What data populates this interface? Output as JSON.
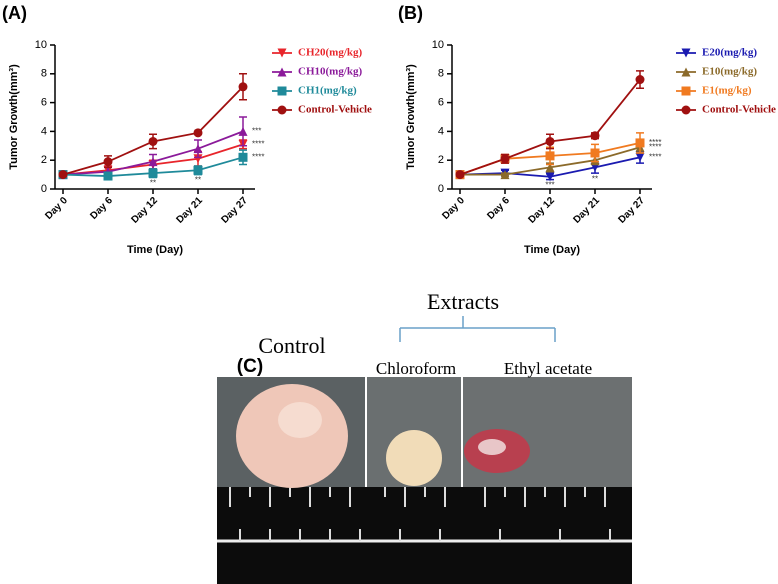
{
  "chart_data": [
    {
      "type": "line",
      "panel": "(A)",
      "y_label": "Tumor Growth(mm³)",
      "x_label": "Time (Day)",
      "categories": [
        "Day 0",
        "Day 6",
        "Day 12",
        "Day 21",
        "Day 27"
      ],
      "ylim": [
        0,
        10
      ],
      "yticks": [
        0,
        2,
        4,
        6,
        8,
        10
      ],
      "series": [
        {
          "name": "CH20(mg/kg)",
          "color": "#e8252b",
          "marker": "triangle-down",
          "values": [
            1.0,
            1.3,
            1.7,
            2.1,
            3.1
          ],
          "errors": [
            0.1,
            0.3,
            0.3,
            0.5,
            0.3
          ],
          "annotations": [
            null,
            null,
            null,
            null,
            "****"
          ]
        },
        {
          "name": "CH10(mg/kg)",
          "color": "#8b1a9a",
          "marker": "triangle-up",
          "values": [
            1.0,
            1.2,
            1.9,
            2.8,
            4.0
          ],
          "errors": [
            0.1,
            0.3,
            0.5,
            0.6,
            1.0
          ],
          "annotations": [
            null,
            null,
            null,
            null,
            "***"
          ]
        },
        {
          "name": "CH1(mg/kg)",
          "color": "#1f8a9a",
          "marker": "square",
          "values": [
            1.0,
            0.9,
            1.1,
            1.3,
            2.2
          ],
          "errors": [
            0.1,
            0.2,
            0.3,
            0.3,
            0.5
          ],
          "annotations": [
            null,
            null,
            "**",
            "**",
            "****"
          ]
        },
        {
          "name": "Control-Vehicle",
          "color": "#a01010",
          "marker": "circle",
          "values": [
            1.0,
            1.9,
            3.3,
            3.9,
            7.1
          ],
          "errors": [
            0.1,
            0.4,
            0.5,
            0.1,
            0.9
          ],
          "annotations": [
            null,
            null,
            null,
            null,
            null
          ]
        }
      ]
    },
    {
      "type": "line",
      "panel": "(B)",
      "y_label": "Tumor Growth(mm³)",
      "x_label": "Time (Day)",
      "categories": [
        "Day 0",
        "Day 6",
        "Day 12",
        "Day 21",
        "Day 27"
      ],
      "ylim": [
        0,
        10
      ],
      "yticks": [
        0,
        2,
        4,
        6,
        8,
        10
      ],
      "series": [
        {
          "name": "E20(mg/kg)",
          "color": "#1a1ab0",
          "marker": "triangle-down",
          "values": [
            1.0,
            1.1,
            0.85,
            1.5,
            2.2
          ],
          "errors": [
            0.1,
            0.2,
            0.2,
            0.4,
            0.4
          ],
          "annotations": [
            null,
            null,
            "***",
            "**",
            "****"
          ]
        },
        {
          "name": "E10(mg/kg)",
          "color": "#8b6a2a",
          "marker": "triangle-up",
          "values": [
            1.0,
            1.0,
            1.5,
            2.0,
            2.9
          ],
          "errors": [
            0.1,
            0.1,
            0.3,
            0.3,
            0.4
          ],
          "annotations": [
            null,
            null,
            null,
            null,
            "****"
          ]
        },
        {
          "name": "E1(mg/kg)",
          "color": "#f07a20",
          "marker": "square",
          "values": [
            1.0,
            2.1,
            2.3,
            2.5,
            3.2
          ],
          "errors": [
            0.1,
            0.3,
            0.6,
            0.6,
            0.7
          ],
          "annotations": [
            null,
            null,
            null,
            null,
            "****"
          ]
        },
        {
          "name": "Control-Vehicle",
          "color": "#a01010",
          "marker": "circle",
          "values": [
            1.0,
            2.1,
            3.3,
            3.7,
            7.6
          ],
          "errors": [
            0.1,
            0.3,
            0.5,
            0.2,
            0.6
          ],
          "annotations": [
            null,
            null,
            null,
            null,
            null
          ]
        }
      ]
    }
  ],
  "panel_c": {
    "label": "(C)",
    "group": "Extracts",
    "control": "Control",
    "chloroform": "Chloroform",
    "ethyl_acetate": "Ethyl acetate"
  }
}
